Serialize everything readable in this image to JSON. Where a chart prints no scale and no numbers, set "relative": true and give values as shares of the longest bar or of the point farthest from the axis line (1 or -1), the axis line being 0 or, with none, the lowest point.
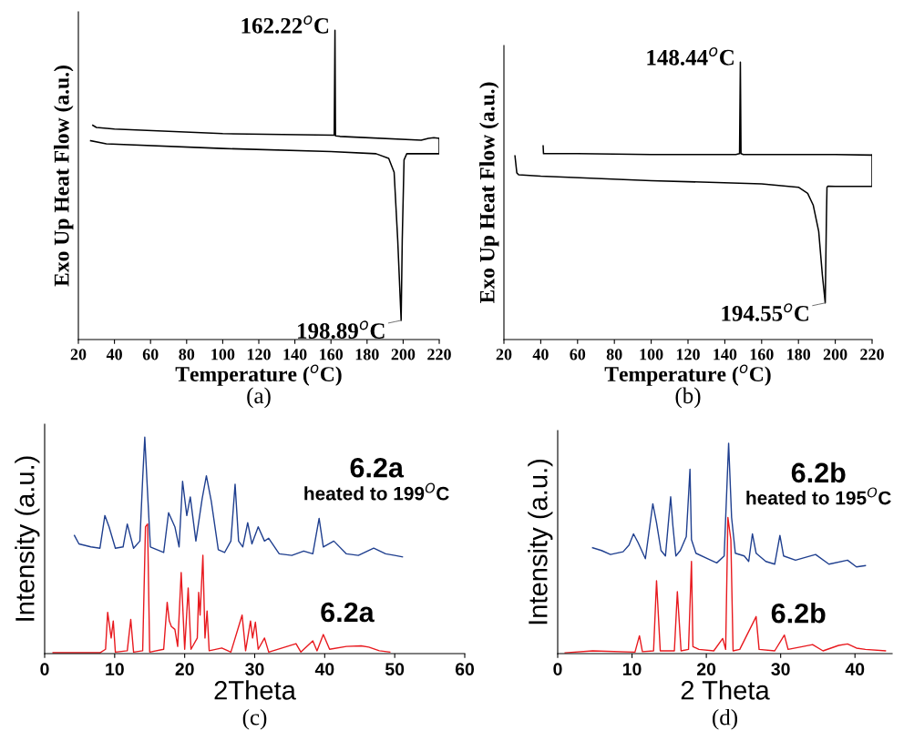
{
  "chart_data": [
    {
      "type": "line",
      "relative": true,
      "tick_labels": "x",
      "xlabel": "Temperature ($^{o}$C)",
      "ylabel": "Exo Up Heat Flow (a.u.)",
      "xlim": [
        20,
        220
      ],
      "xticks": [
        20,
        40,
        60,
        80,
        100,
        120,
        140,
        160,
        180,
        200,
        220
      ],
      "series": [
        {
          "color": "#000000",
          "x": [
            26.8,
            35.5,
            100,
            160,
            185,
            192,
            195,
            197,
            198.89,
            199.5,
            200.5,
            202,
            220,
            220
          ],
          "values": [
            0.643,
            0.633,
            0.618,
            0.608,
            0.601,
            0.586,
            0.541,
            0.321,
            0.062,
            0.321,
            0.581,
            0.601,
            0.601,
            0.651
          ]
        },
        {
          "color": "#000000",
          "x": [
            220,
            217,
            214,
            210,
            165,
            162.5,
            162.22,
            161.8,
            100,
            40,
            30,
            28
          ],
          "values": [
            0.651,
            0.653,
            0.651,
            0.645,
            0.657,
            0.659,
            1.0,
            0.661,
            0.666,
            0.681,
            0.686,
            0.693
          ]
        }
      ],
      "annotations": [
        {
          "text": "162.22$^{o}$C",
          "x": 162.22,
          "y": 1.0
        },
        {
          "text": "198.89$^{o}$C",
          "x": 198.89,
          "y": 0.062
        },
        "(a)"
      ]
    },
    {
      "type": "line",
      "relative": true,
      "tick_labels": "x",
      "xlabel": "Temperature ($^{o}$C)",
      "ylabel": "Exo Up Heat Flow (a.u.)",
      "xlim": [
        20,
        220
      ],
      "xticks": [
        20,
        40,
        60,
        80,
        100,
        120,
        140,
        160,
        180,
        200,
        220
      ],
      "series": [
        {
          "color": "#000000",
          "x": [
            26,
            27,
            28,
            40,
            100,
            160,
            180,
            185,
            188,
            191,
            193,
            194.55,
            195.2,
            195.5,
            196,
            200,
            220,
            220
          ],
          "values": [
            0.662,
            0.601,
            0.594,
            0.589,
            0.573,
            0.561,
            0.549,
            0.527,
            0.485,
            0.39,
            0.232,
            0.132,
            0.443,
            0.549,
            0.553,
            0.552,
            0.552,
            0.665
          ]
        },
        {
          "color": "#000000",
          "x": [
            220,
            200,
            150,
            148.8,
            148.44,
            148.0,
            146,
            100,
            60,
            44,
            41.5,
            41.3
          ],
          "values": [
            0.665,
            0.667,
            0.667,
            0.67,
            1.0,
            0.67,
            0.667,
            0.667,
            0.67,
            0.67,
            0.67,
            0.698
          ]
        }
      ],
      "annotations": [
        {
          "text": "148.44$^{o}$C",
          "x": 148.44,
          "y": 1.0
        },
        {
          "text": "194.55$^{o}$C",
          "x": 194.55,
          "y": 0.132
        },
        "(b)"
      ]
    },
    {
      "type": "line",
      "relative": true,
      "tick_labels": "x",
      "xlabel": "2Theta",
      "ylabel": "Intensity (a.u.)",
      "xlim": [
        0,
        60
      ],
      "xticks": [
        0,
        10,
        20,
        30,
        40,
        50,
        60
      ],
      "series": [
        {
          "name": "6.2a\nheated to 199$^{O}$C",
          "color": "#1f3f8f",
          "x": [
            4.25,
            4.9,
            6.6,
            7.9,
            8.6,
            9.2,
            10.1,
            11.2,
            11.8,
            12.7,
            13.6,
            14.0,
            14.3,
            14.7,
            15.1,
            17.0,
            17.7,
            18.6,
            19.2,
            19.7,
            20.3,
            20.8,
            21.6,
            22.5,
            23.1,
            23.8,
            24.8,
            25.7,
            26.6,
            27.2,
            27.7,
            28.3,
            29.0,
            29.6,
            30.5,
            31.4,
            32.0,
            33.5,
            35.3,
            37.0,
            38.3,
            39.2,
            39.8,
            41.3,
            43.1,
            44.8,
            47.0,
            48.7,
            50.0,
            51.1
          ],
          "values": [
            0.546,
            0.507,
            0.493,
            0.487,
            0.638,
            0.586,
            0.487,
            0.493,
            0.599,
            0.487,
            0.52,
            0.809,
            1.0,
            0.743,
            0.493,
            0.467,
            0.651,
            0.586,
            0.493,
            0.796,
            0.638,
            0.724,
            0.52,
            0.717,
            0.822,
            0.704,
            0.48,
            0.467,
            0.52,
            0.783,
            0.52,
            0.493,
            0.605,
            0.507,
            0.586,
            0.52,
            0.533,
            0.461,
            0.454,
            0.474,
            0.461,
            0.625,
            0.493,
            0.52,
            0.461,
            0.454,
            0.487,
            0.461,
            0.454,
            0.447
          ]
        },
        {
          "name": "6.2a",
          "color": "#e8191e",
          "x": [
            1.2,
            7.9,
            8.7,
            9.0,
            9.5,
            9.8,
            10.1,
            11.8,
            12.3,
            12.7,
            14.0,
            14.4,
            14.7,
            15.0,
            17.0,
            17.5,
            17.8,
            18.1,
            18.6,
            19.0,
            19.5,
            20.0,
            20.5,
            20.9,
            21.8,
            22.0,
            22.2,
            22.6,
            22.9,
            23.2,
            23.5,
            25.3,
            26.6,
            28.2,
            28.7,
            29.4,
            29.7,
            30.1,
            30.5,
            31.4,
            32.0,
            35.9,
            36.6,
            38.3,
            38.9,
            39.8,
            40.7,
            43.1,
            45.2,
            46.3,
            47.8,
            49.3
          ],
          "values": [
            0.004,
            0.004,
            0.02,
            0.191,
            0.072,
            0.151,
            0.007,
            0.013,
            0.158,
            0.007,
            0.013,
            0.586,
            0.599,
            0.007,
            0.02,
            0.237,
            0.151,
            0.125,
            0.112,
            0.033,
            0.375,
            0.02,
            0.303,
            0.02,
            0.072,
            0.283,
            0.178,
            0.454,
            0.072,
            0.197,
            0.013,
            0.026,
            0.007,
            0.178,
            0.013,
            0.151,
            0.072,
            0.145,
            0.02,
            0.072,
            0.007,
            0.046,
            0.007,
            0.059,
            0.013,
            0.088,
            0.02,
            0.033,
            0.036,
            0.03,
            0.013,
            0.007
          ]
        }
      ],
      "annotations": [
        "(c)"
      ]
    },
    {
      "type": "line",
      "relative": true,
      "tick_labels": "x",
      "xlabel": "2 Theta",
      "ylabel": "Intensity (a.u.)",
      "xlim": [
        0,
        45
      ],
      "xticks": [
        0,
        10,
        20,
        30,
        40
      ],
      "series": [
        {
          "name": "6.2b\nheated to 195$^{O}$C",
          "color": "#1f3f8f",
          "x": [
            4.7,
            5.9,
            7.1,
            8.8,
            9.6,
            10.2,
            10.8,
            11.8,
            12.8,
            13.3,
            13.9,
            14.5,
            15.2,
            15.5,
            15.9,
            16.5,
            17.3,
            17.8,
            18.0,
            18.6,
            20.2,
            21.4,
            22.4,
            23.0,
            23.4,
            23.9,
            25.1,
            25.7,
            26.2,
            26.7,
            28.0,
            29.2,
            29.9,
            30.4,
            32.0,
            34.7,
            36.5,
            39.0,
            40.2,
            41.4
          ],
          "values": [
            0.503,
            0.49,
            0.471,
            0.484,
            0.516,
            0.569,
            0.529,
            0.451,
            0.712,
            0.621,
            0.49,
            0.464,
            0.745,
            0.608,
            0.464,
            0.49,
            0.556,
            0.876,
            0.542,
            0.477,
            0.451,
            0.431,
            0.464,
            1.0,
            0.647,
            0.477,
            0.464,
            0.438,
            0.569,
            0.477,
            0.438,
            0.425,
            0.562,
            0.464,
            0.444,
            0.471,
            0.425,
            0.444,
            0.412,
            0.418
          ]
        },
        {
          "name": "6.2b",
          "color": "#e8191e",
          "x": [
            1.0,
            4.7,
            10.4,
            11.0,
            11.4,
            12.9,
            13.3,
            13.8,
            15.7,
            16.1,
            16.6,
            17.6,
            18.0,
            18.2,
            19.0,
            21.0,
            22.2,
            22.6,
            22.9,
            23.3,
            23.6,
            24.5,
            26.7,
            27.1,
            29.2,
            30.5,
            31.0,
            32.9,
            34.3,
            35.7,
            37.8,
            39.0,
            40.2,
            41.4,
            44.1
          ],
          "values": [
            0.004,
            0.013,
            0.007,
            0.085,
            0.009,
            0.013,
            0.346,
            0.013,
            0.013,
            0.294,
            0.013,
            0.02,
            0.438,
            0.033,
            0.02,
            0.013,
            0.072,
            0.02,
            0.647,
            0.542,
            0.013,
            0.02,
            0.176,
            0.02,
            0.013,
            0.088,
            0.02,
            0.033,
            0.043,
            0.013,
            0.039,
            0.046,
            0.026,
            0.02,
            0.013
          ]
        }
      ],
      "annotations": [
        "(d)"
      ]
    }
  ]
}
